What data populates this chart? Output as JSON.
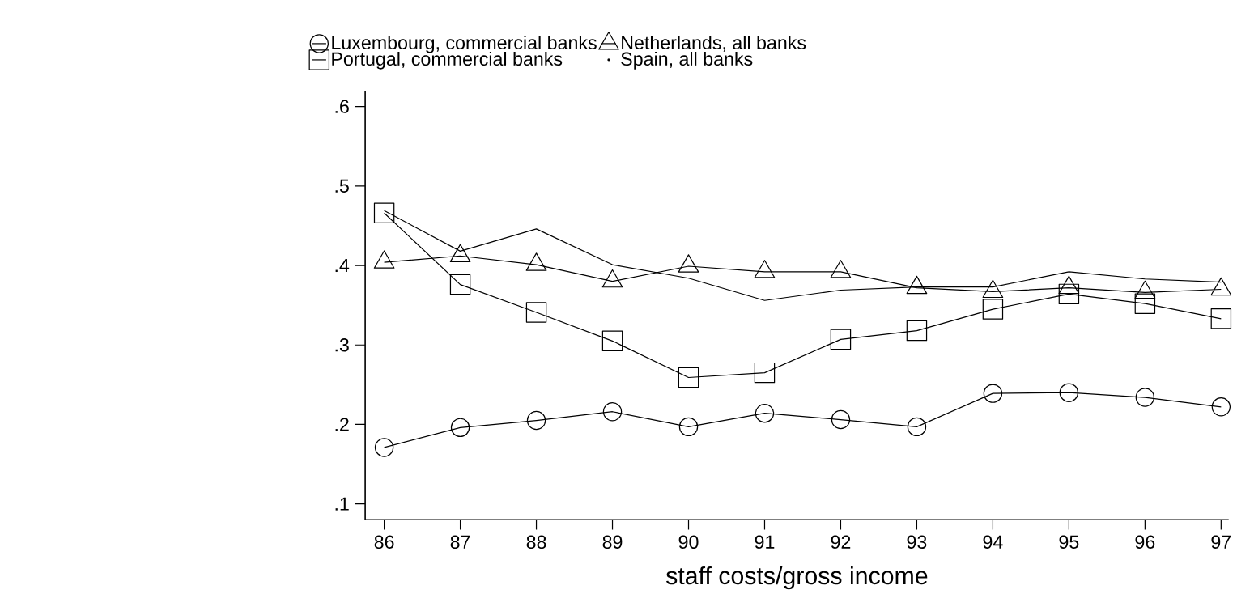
{
  "chart_data": {
    "type": "line",
    "xlabel": "staff costs/gross income",
    "x": [
      86,
      87,
      88,
      89,
      90,
      91,
      92,
      93,
      94,
      95,
      96,
      97
    ],
    "series": [
      {
        "name": "Luxembourg, commercial banks",
        "color": "#000000",
        "marker": "circle",
        "values": [
          0.171,
          0.196,
          0.205,
          0.216,
          0.197,
          0.214,
          0.206,
          0.197,
          0.239,
          0.24,
          0.234,
          0.222
        ]
      },
      {
        "name": "Netherlands, all banks",
        "color": "#000000",
        "marker": "triangle",
        "values": [
          0.404,
          0.412,
          0.401,
          0.38,
          0.399,
          0.392,
          0.392,
          0.372,
          0.367,
          0.372,
          0.366,
          0.37
        ]
      },
      {
        "name": "Portugal, commercial banks",
        "color": "#000000",
        "marker": "square",
        "values": [
          0.466,
          0.376,
          0.341,
          0.305,
          0.259,
          0.265,
          0.307,
          0.318,
          0.345,
          0.364,
          0.352,
          0.333
        ]
      },
      {
        "name": "Spain, all banks",
        "color": "#000000",
        "marker": "none",
        "values": [
          0.469,
          0.418,
          0.446,
          0.401,
          0.384,
          0.356,
          0.369,
          0.373,
          0.373,
          0.392,
          0.383,
          0.379
        ]
      }
    ],
    "xlim": [
      85.75,
      97.1
    ],
    "ylim": [
      0.08,
      0.62
    ],
    "xticks": [
      86,
      87,
      88,
      89,
      90,
      91,
      92,
      93,
      94,
      95,
      96,
      97
    ],
    "yticks": [
      {
        "value": 0.1,
        "label": ".1"
      },
      {
        "value": 0.2,
        "label": ".2"
      },
      {
        "value": 0.3,
        "label": ".3"
      },
      {
        "value": 0.4,
        "label": ".4"
      },
      {
        "value": 0.5,
        "label": ".5"
      },
      {
        "value": 0.6,
        "label": ".6"
      }
    ],
    "grid": false,
    "legend": "top left"
  }
}
